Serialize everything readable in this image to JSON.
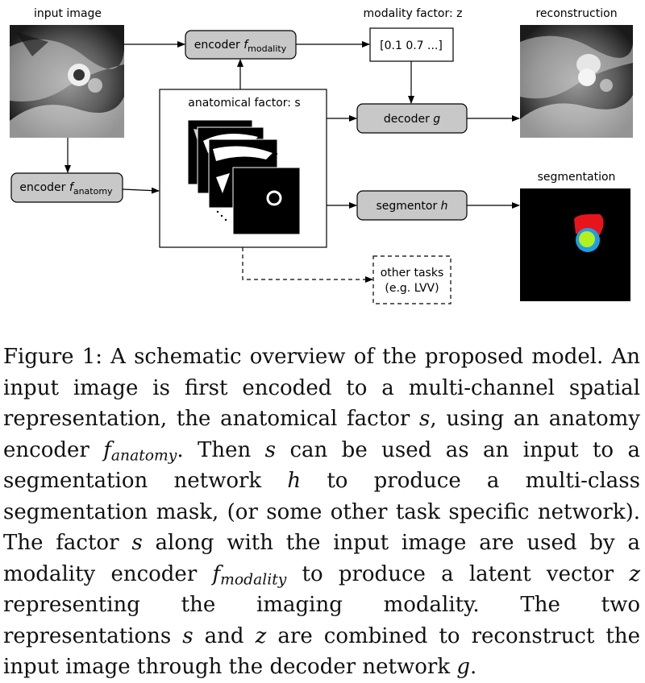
{
  "diagram": {
    "input_image_label": "input image",
    "modality_factor_label": "modality factor: z",
    "modality_vector_value": "[0.1 0.7 ...]",
    "reconstruction_label": "reconstruction",
    "segmentation_label": "segmentation",
    "anatomical_factor_label": "anatomical factor: s",
    "encoder_modality": {
      "label": "encoder ",
      "symbol": "f",
      "subscript": "modality"
    },
    "encoder_anatomy": {
      "label": "encoder ",
      "symbol": "f",
      "subscript": "anatomy"
    },
    "decoder": {
      "label": "decoder ",
      "symbol": "g"
    },
    "segmentor": {
      "label": "segmentor ",
      "symbol": "h"
    },
    "other_tasks": {
      "line1": "other tasks",
      "line2": "(e.g. LVV)"
    },
    "colors": {
      "box_fill": "#c8c8c8",
      "seg_red": "#e8141c",
      "seg_blue": "#1aa0e6",
      "seg_green": "#b4f01e"
    }
  },
  "caption": {
    "figure_label": "Figure 1:",
    "p1": " A schematic overview of the proposed model. An input image is first encoded to a multi-channel spatial representation, the anatomical factor ",
    "s1": "s",
    "p2": ", using an anatomy encoder ",
    "f_anat": "f",
    "f_anat_sub": "anatomy",
    "p3": ". Then ",
    "s2": "s",
    "p4": " can be used as an input to a segmentation network ",
    "h": "h",
    "p5": " to produce a multi-class segmentation mask, (or some other task specific network). The factor ",
    "s3": "s",
    "p6": " along with the input image are used by a modality encoder ",
    "f_mod": "f",
    "f_mod_sub": "modality",
    "p7": " to produce a latent vector ",
    "z1": "z",
    "p8": " representing the imaging modality. The two representations ",
    "s4": "s",
    "p9": " and ",
    "z2": "z",
    "p10": " are combined to reconstruct the input image through the decoder network ",
    "g": "g",
    "p11": "."
  }
}
